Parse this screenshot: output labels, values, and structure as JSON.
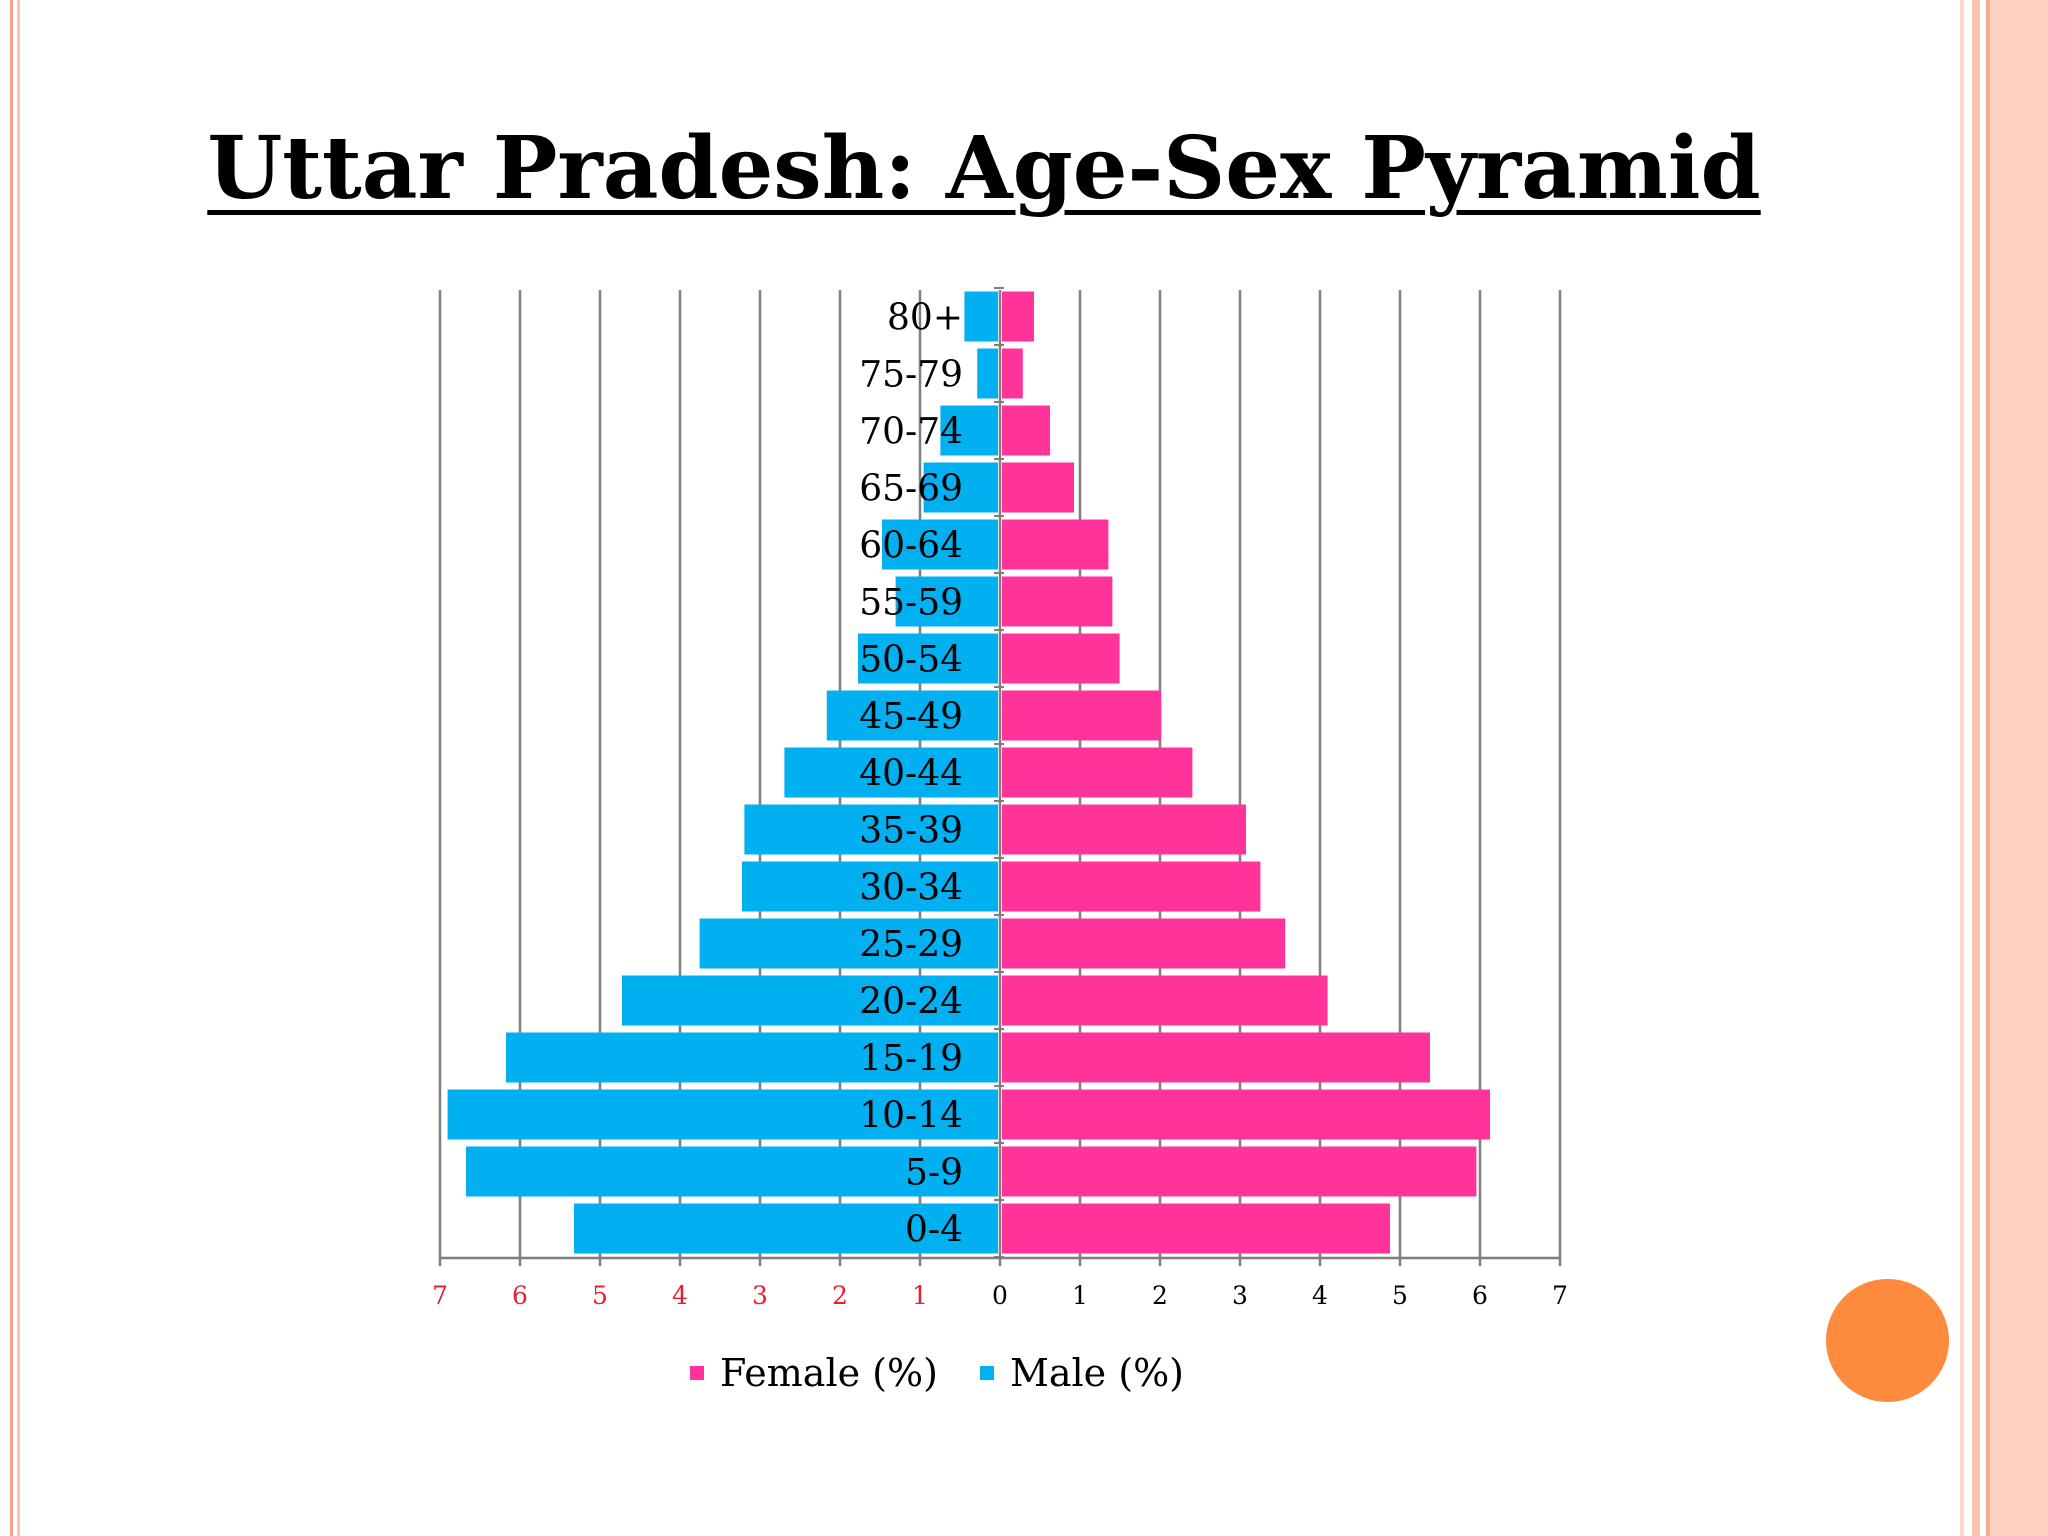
{
  "slide": {
    "title": "Uttar Pradesh: Age-Sex Pyramid"
  },
  "colors": {
    "female": "#ff3399",
    "male": "#00b0f0",
    "left_tick_labels": "#e41e2a",
    "accent_circle": "#fd8a3d"
  },
  "chart_data": {
    "type": "bar",
    "orientation": "horizontal-pyramid",
    "categories": [
      "0-4",
      "5-9",
      "10-14",
      "15-19",
      "20-24",
      "25-29",
      "30-34",
      "35-39",
      "40-44",
      "45-49",
      "50-54",
      "55-59",
      "60-64",
      "65-69",
      "70-74",
      "75-79",
      "80+"
    ],
    "series": [
      {
        "name": "Female (%)",
        "side": "right",
        "values": [
          4.85,
          5.93,
          6.1,
          5.35,
          4.07,
          3.54,
          3.23,
          3.05,
          2.38,
          1.99,
          1.47,
          1.38,
          1.33,
          0.9,
          0.6,
          0.26,
          0.4
        ]
      },
      {
        "name": "Male (%)",
        "side": "left",
        "values": [
          5.3,
          6.65,
          6.88,
          6.15,
          4.7,
          3.73,
          3.2,
          3.17,
          2.67,
          2.14,
          1.75,
          1.28,
          1.45,
          0.93,
          0.72,
          0.26,
          0.42
        ]
      }
    ],
    "x_tick_labels_left": [
      "7",
      "6",
      "5",
      "4",
      "3",
      "2",
      "1"
    ],
    "x_tick_labels_right": [
      "0",
      "1",
      "2",
      "3",
      "4",
      "5",
      "6",
      "7"
    ],
    "xlim": [
      -7,
      7
    ],
    "grid": "vertical",
    "legend_position": "bottom"
  }
}
